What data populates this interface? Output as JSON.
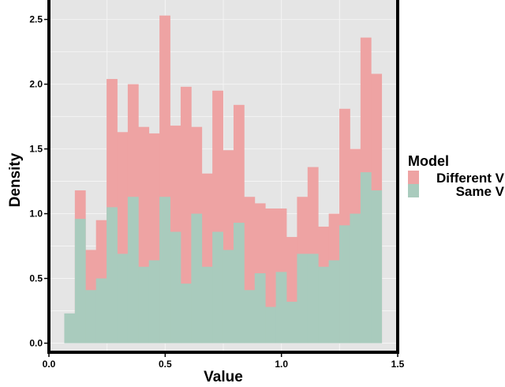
{
  "chart_data": {
    "type": "histogram",
    "xlabel": "Value",
    "ylabel": "Density",
    "xlim": [
      0.0,
      1.5
    ],
    "ylim": [
      -0.07,
      2.65
    ],
    "x_ticks": [
      0.0,
      0.5,
      1.0,
      1.5
    ],
    "x_tick_labels": [
      "0.0",
      "0.5",
      "1.0",
      "1.5"
    ],
    "y_ticks": [
      0.0,
      0.5,
      1.0,
      1.5,
      2.0,
      2.5
    ],
    "y_tick_labels": [
      "0.0",
      "0.5",
      "1.0",
      "1.5",
      "2.0",
      "2.5"
    ],
    "grid": true,
    "legend_position": "right",
    "legend_title": "Model",
    "bin_width": 0.0455,
    "bin_edges": [
      0.066,
      0.1115,
      0.157,
      0.2025,
      0.248,
      0.2935,
      0.339,
      0.3845,
      0.43,
      0.4755,
      0.521,
      0.5665,
      0.612,
      0.6575,
      0.703,
      0.7485,
      0.794,
      0.8395,
      0.885,
      0.9305,
      0.976,
      1.0215,
      1.067,
      1.1125,
      1.158,
      1.2035,
      1.249,
      1.2945,
      1.34,
      1.3855,
      1.431
    ],
    "series": [
      {
        "name": "Different V",
        "color": "#eea3a3",
        "values": [
          0,
          1.18,
          0.72,
          0.95,
          2.04,
          1.63,
          2.0,
          1.67,
          1.62,
          2.53,
          1.68,
          1.98,
          1.67,
          1.31,
          1.95,
          1.49,
          1.84,
          1.13,
          1.08,
          1.04,
          1.04,
          0.82,
          1.13,
          1.36,
          0.9,
          1.0,
          1.81,
          1.5,
          2.36,
          2.08
        ]
      },
      {
        "name": "Same V",
        "color": "#a9cbbd",
        "values": [
          0.23,
          0.96,
          0.41,
          0.5,
          1.05,
          0.69,
          1.13,
          0.59,
          0.64,
          1.13,
          0.86,
          0.46,
          1.0,
          0.59,
          0.86,
          0.72,
          0.93,
          0.41,
          0.54,
          0.28,
          0.55,
          0.32,
          0.69,
          0.69,
          0.59,
          0.64,
          0.91,
          1.0,
          1.32,
          1.18
        ]
      }
    ]
  },
  "colors": {
    "panel_background": "#e5e5e5",
    "grid": "#f4f4f4",
    "frame": "#000000"
  }
}
